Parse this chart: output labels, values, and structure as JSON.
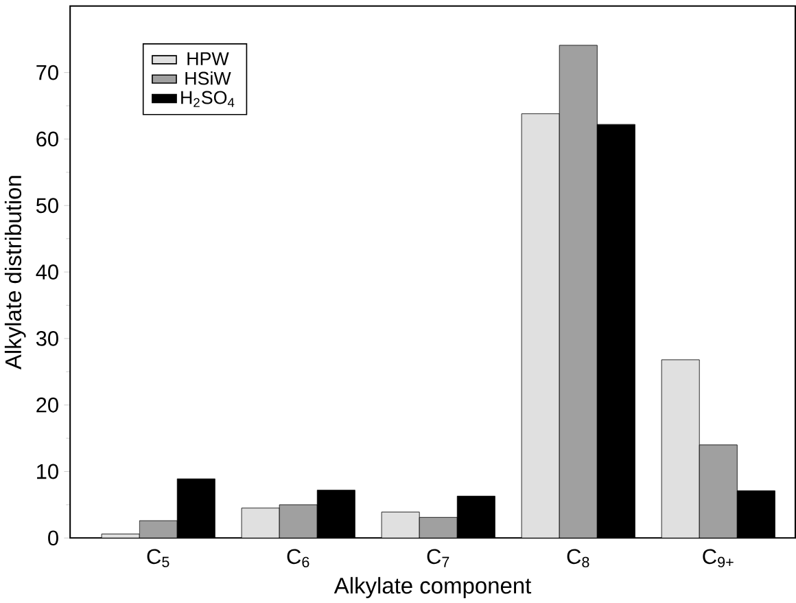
{
  "chart_data": {
    "type": "bar",
    "xlabel": "Alkylate component",
    "ylabel": "Alkylate distribution",
    "categories": [
      "C$_{5}$",
      "C$_{6}$",
      "C$_{7}$",
      "C$_{8}$",
      "C$_{9+}$"
    ],
    "series": [
      {
        "name": "HPW",
        "color": "#e0e0e0",
        "values": [
          0.6,
          4.5,
          3.9,
          63.8,
          26.8
        ]
      },
      {
        "name": "HSiW",
        "color": "#a0a0a0",
        "values": [
          2.6,
          5.0,
          3.1,
          74.1,
          14.0
        ]
      },
      {
        "name": "H$_{2}$SO$_{4}$",
        "color": "#000000",
        "values": [
          8.9,
          7.2,
          6.3,
          62.2,
          7.1
        ]
      }
    ],
    "ylim": [
      0,
      80
    ],
    "yticks": [
      0,
      10,
      20,
      30,
      40,
      50,
      60,
      70
    ],
    "legend": "top left",
    "grid": false
  }
}
